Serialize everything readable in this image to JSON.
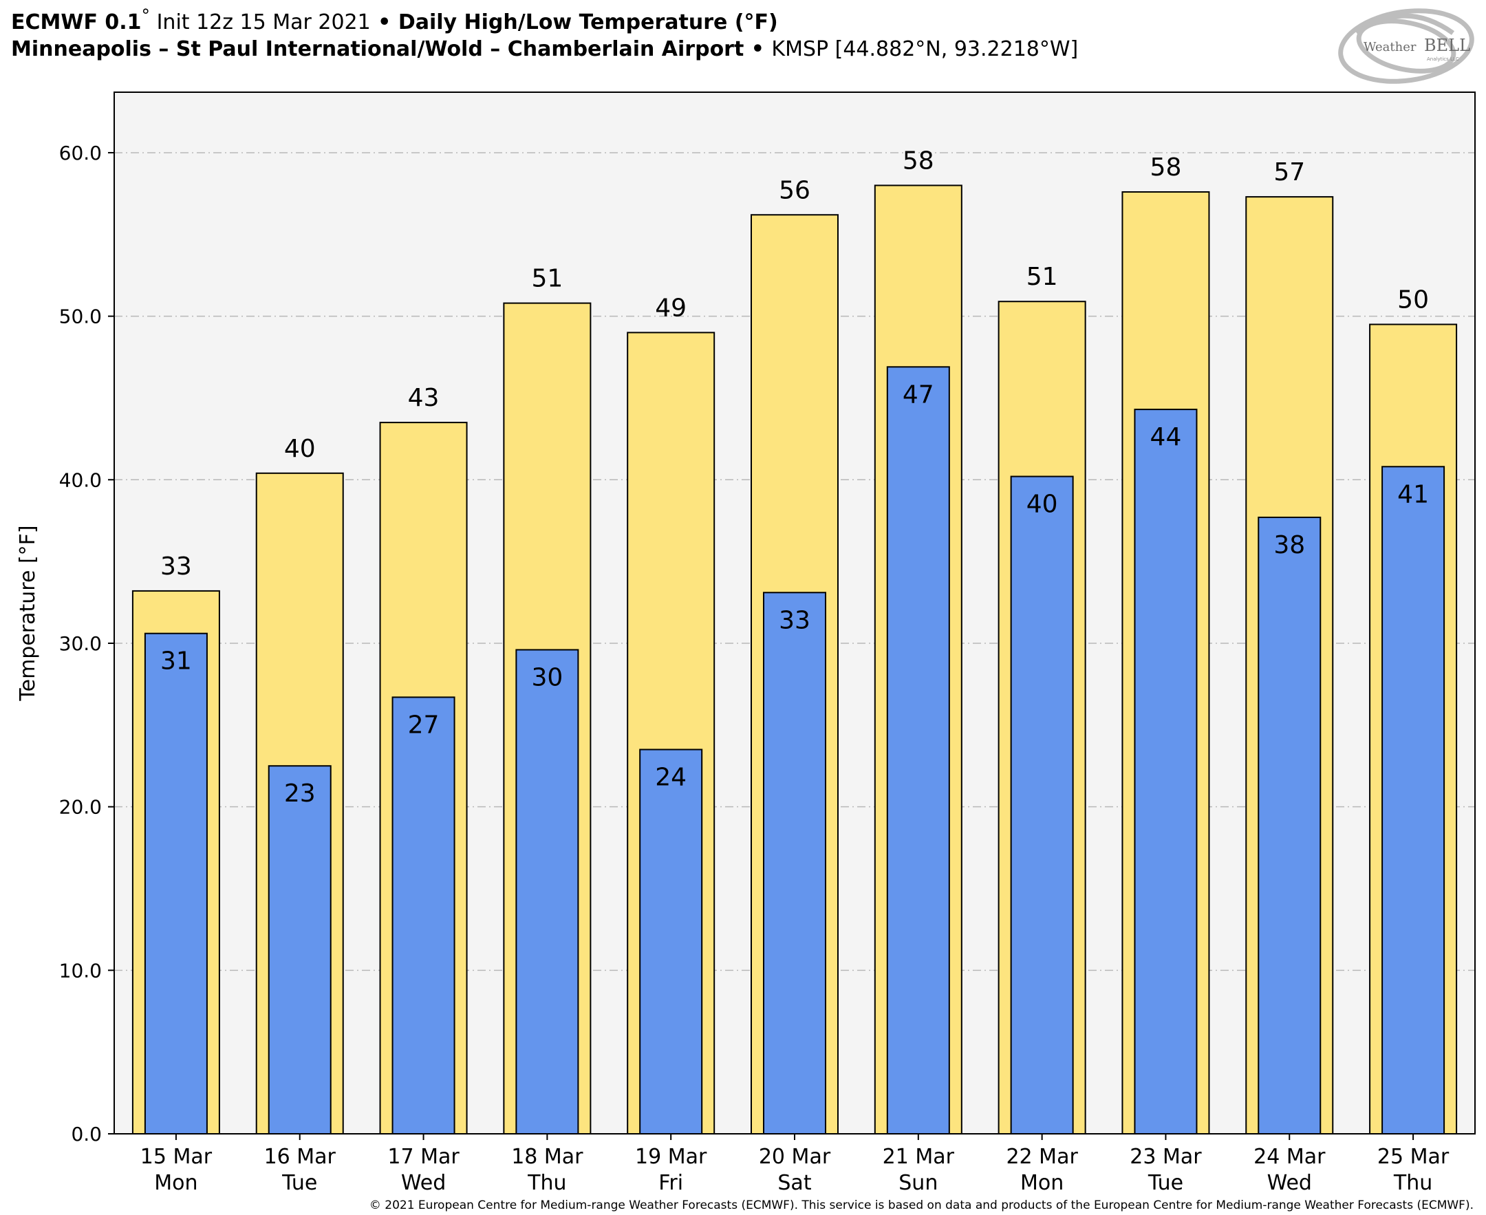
{
  "header": {
    "line1": {
      "model": "ECMWF 0.1",
      "degree": "°",
      "init": " Init 12z 15 Mar 2021",
      "sep": " • ",
      "product": "Daily High/Low Temperature (°F)"
    },
    "line2": {
      "station": "Minneapolis – St Paul International/Wold – Chamberlain Airport",
      "sep": " • ",
      "coords": "KMSP [44.882°N, 93.2218°W]"
    }
  },
  "logo": {
    "text_a": "Weather",
    "text_b": "BELL",
    "sub": "Analytics LLC"
  },
  "chart_data": {
    "type": "bar",
    "ylabel": "Temperature [°F]",
    "ylim": [
      0,
      63.7
    ],
    "yticks": [
      0,
      10,
      20,
      30,
      40,
      50,
      60
    ],
    "ytick_labels": [
      "0.0",
      "10.0",
      "20.0",
      "30.0",
      "40.0",
      "50.0",
      "60.0"
    ],
    "grid": "horizontal dashed",
    "categories": [
      [
        "15 Mar",
        "Mon"
      ],
      [
        "16 Mar",
        "Tue"
      ],
      [
        "17 Mar",
        "Wed"
      ],
      [
        "18 Mar",
        "Thu"
      ],
      [
        "19 Mar",
        "Fri"
      ],
      [
        "20 Mar",
        "Sat"
      ],
      [
        "21 Mar",
        "Sun"
      ],
      [
        "22 Mar",
        "Mon"
      ],
      [
        "23 Mar",
        "Tue"
      ],
      [
        "24 Mar",
        "Wed"
      ],
      [
        "25 Mar",
        "Thu"
      ]
    ],
    "series": [
      {
        "role": "high",
        "color": "#fde47f",
        "values": [
          33.2,
          40.4,
          43.5,
          50.8,
          49.0,
          56.2,
          58.0,
          50.9,
          57.6,
          57.3,
          49.5
        ],
        "labels": [
          "33",
          "40",
          "43",
          "51",
          "49",
          "56",
          "58",
          "51",
          "58",
          "57",
          "50"
        ]
      },
      {
        "role": "low",
        "color": "#6495ed",
        "values": [
          30.6,
          22.5,
          26.7,
          29.6,
          23.5,
          33.1,
          46.9,
          40.2,
          44.3,
          37.7,
          40.8
        ],
        "labels": [
          "31",
          "23",
          "27",
          "30",
          "24",
          "33",
          "47",
          "40",
          "44",
          "38",
          "41"
        ]
      }
    ],
    "plot_background": "#f4f4f4"
  },
  "footer": {
    "copyright": "© 2021 European Centre for Medium-range Weather Forecasts (ECMWF). This service is based on data and products of the European Centre for Medium-range Weather Forecasts (ECMWF)."
  }
}
